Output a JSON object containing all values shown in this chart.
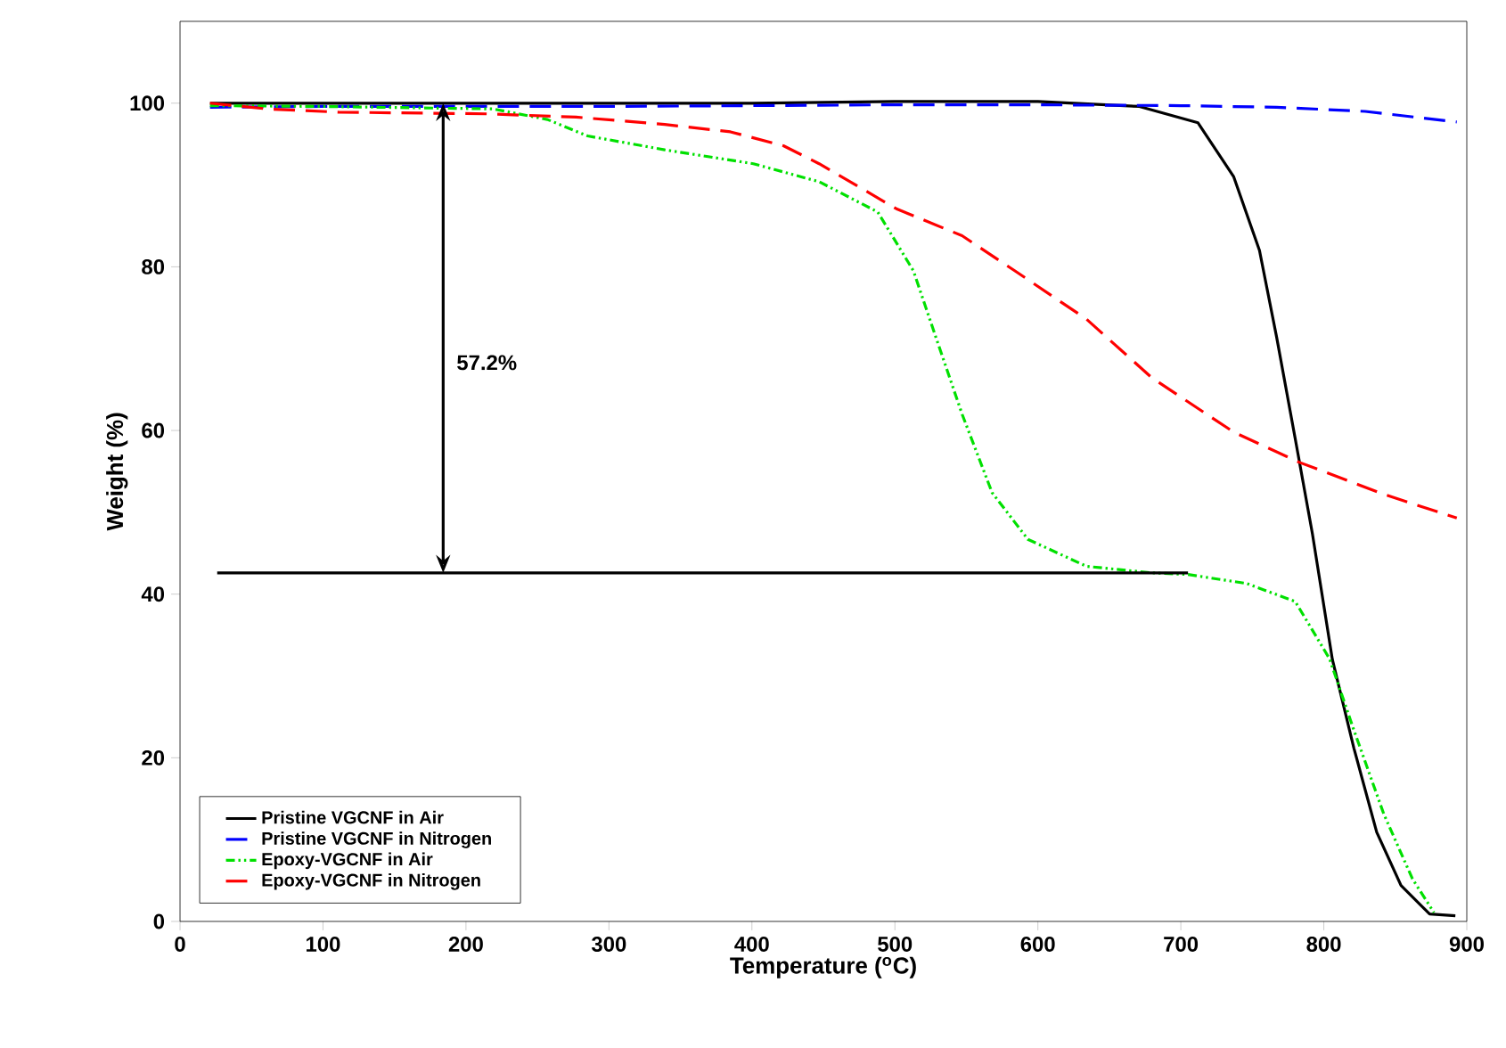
{
  "chart_data": {
    "type": "line",
    "xlabel": "Temperature ($^{o}$C)",
    "ylabel": "Weight (%)",
    "xlim": [
      0,
      900
    ],
    "ylim": [
      0,
      110
    ],
    "xticks": [
      0,
      100,
      200,
      300,
      400,
      500,
      600,
      700,
      800,
      900
    ],
    "yticks": [
      0,
      20,
      40,
      60,
      80,
      100
    ],
    "legend": "bottom left",
    "grid": false,
    "marker": "none",
    "annotations": [
      "57.2%"
    ],
    "series": [
      {
        "name": "Pristine VGCNF in Air",
        "color": "#000000",
        "line_style": "solid",
        "x": [
          21,
          100,
          200,
          300,
          400,
          500,
          600,
          671,
          712,
          737,
          755,
          767,
          780,
          792,
          800,
          806,
          821,
          837,
          854,
          874,
          892
        ],
        "values": [
          100,
          100,
          100,
          100,
          100,
          100.2,
          100.2,
          99.6,
          97.6,
          91,
          82,
          71.4,
          59,
          47.4,
          38.6,
          32,
          21.2,
          10.9,
          4.4,
          0.9,
          0.7
        ]
      },
      {
        "name": "Pristine VGCNF in Nitrogen",
        "color": "#0000ff",
        "line_style": "dashed",
        "x": [
          21,
          100,
          200,
          300,
          400,
          500,
          600,
          700,
          767,
          829,
          893
        ],
        "values": [
          99.5,
          99.6,
          99.6,
          99.6,
          99.7,
          99.8,
          99.8,
          99.7,
          99.5,
          99,
          97.7
        ]
      },
      {
        "name": "Epoxy-VGCNF in Air",
        "color": "#00e000",
        "line_style": "dashdotdot",
        "x": [
          21,
          100,
          219,
          257,
          285,
          339,
          401,
          447,
          488,
          513,
          530,
          547,
          568,
          593,
          634,
          680,
          705,
          746,
          780,
          804,
          821,
          842,
          862,
          877
        ],
        "values": [
          99.7,
          99.6,
          99.3,
          98,
          96,
          94.3,
          92.6,
          90.4,
          86.7,
          79.5,
          70.7,
          62,
          52.4,
          46.7,
          43.4,
          42.6,
          42.4,
          41.3,
          39.1,
          32.1,
          23.4,
          13.1,
          5.2,
          1.1
        ]
      },
      {
        "name": "Epoxy-VGCNF in Nitrogen",
        "color": "#ff0000",
        "line_style": "dashed",
        "x": [
          21,
          61,
          111,
          214,
          277,
          339,
          385,
          422,
          447,
          501,
          547,
          584,
          634,
          680,
          737,
          783,
          842,
          893
        ],
        "values": [
          100,
          99.3,
          98.9,
          98.7,
          98.3,
          97.4,
          96.5,
          94.8,
          92.6,
          87.1,
          83.8,
          79.5,
          73.6,
          66.4,
          59.8,
          56.1,
          52.2,
          49.3
        ]
      },
      {
        "type": "line",
        "color": "#000000",
        "line_style": "solid",
        "x": [
          26,
          705
        ],
        "values": [
          42.6,
          42.6
        ]
      }
    ]
  }
}
